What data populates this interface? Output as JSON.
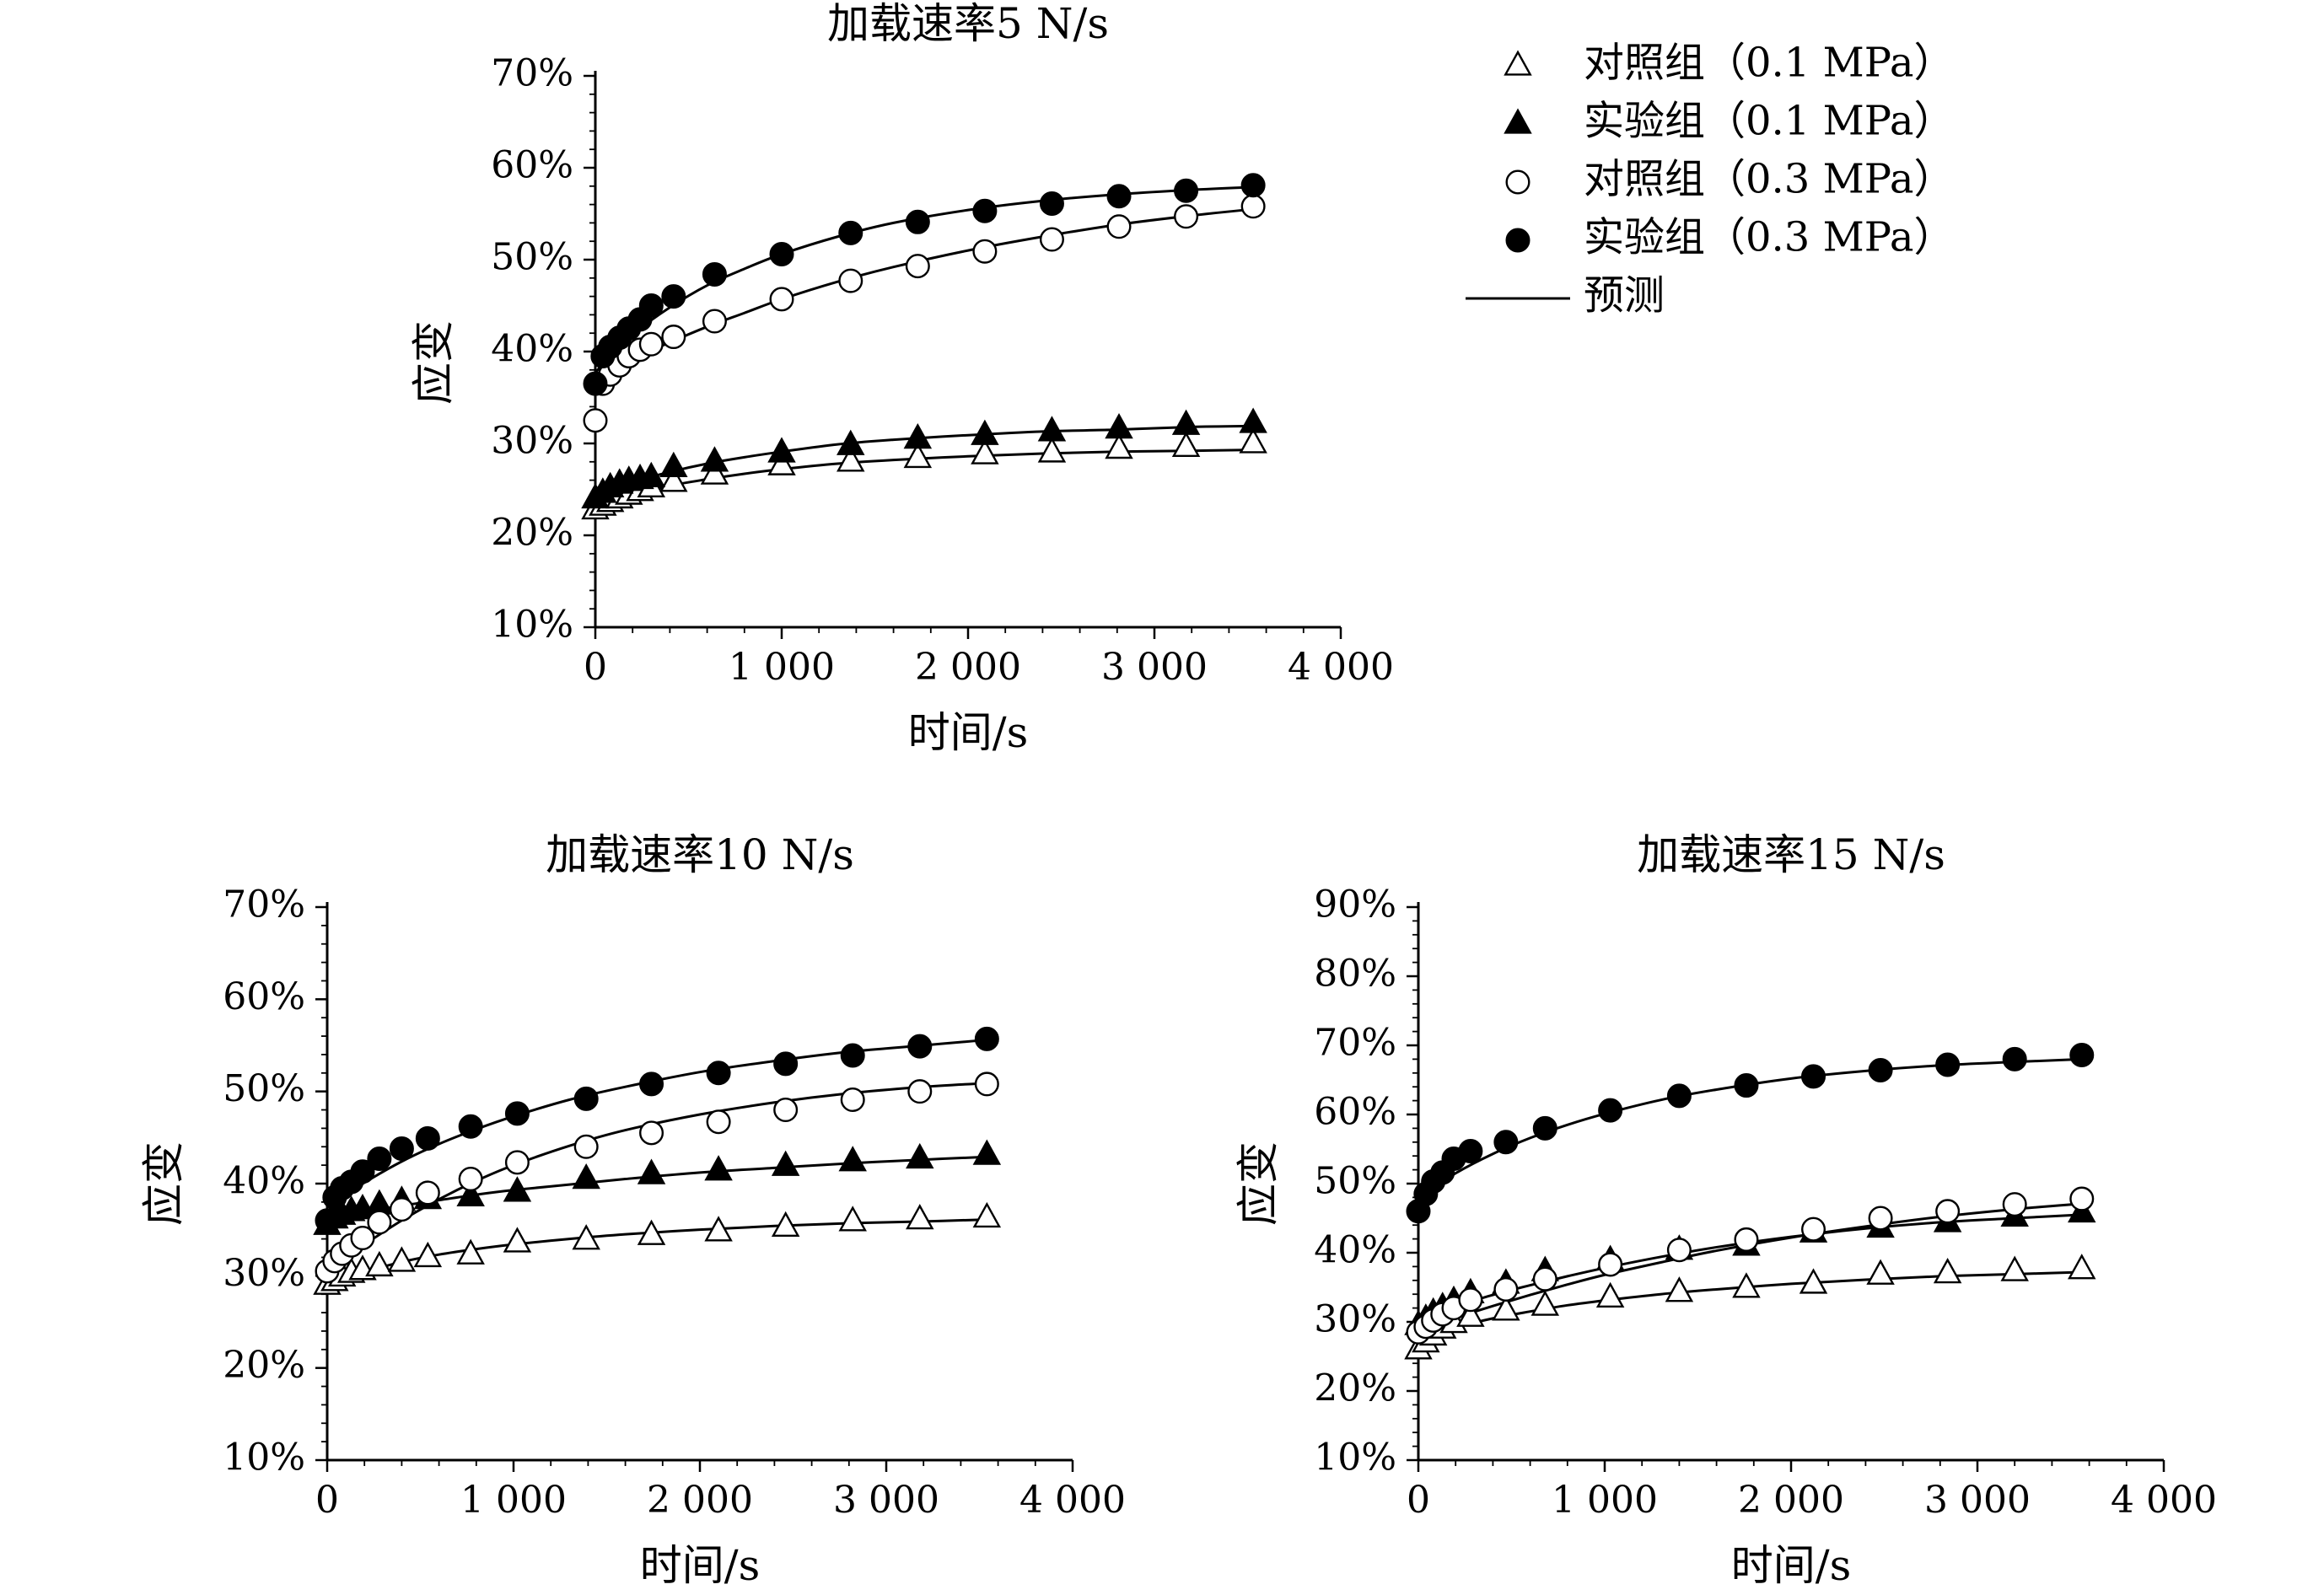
{
  "legend": {
    "items": [
      {
        "label": "对照组（0.1 MPa）",
        "marker": "triangle-open"
      },
      {
        "label": "实验组（0.1 MPa）",
        "marker": "triangle-filled"
      },
      {
        "label": "对照组（0.3 MPa）",
        "marker": "circle-open"
      },
      {
        "label": "实验组（0.3 MPa）",
        "marker": "circle-filled"
      },
      {
        "label": "预测",
        "marker": "line"
      }
    ]
  },
  "chart_data": [
    {
      "type": "scatter",
      "title": "加载速率5 N/s",
      "xlabel": "时间/s",
      "ylabel": "应变",
      "xlim": [
        0,
        4000
      ],
      "ylim": [
        10,
        70
      ],
      "xticks": [
        0,
        1000,
        2000,
        3000,
        4000
      ],
      "xtick_labels": [
        "0",
        "1 000",
        "2 000",
        "3 000",
        "4 000"
      ],
      "yticks": [
        10,
        20,
        30,
        40,
        50,
        60,
        70
      ],
      "ytick_labels": [
        "10%",
        "20%",
        "30%",
        "40%",
        "50%",
        "60%",
        "70%"
      ],
      "series": [
        {
          "name": "对照组（0.1 MPa）",
          "marker": "triangle-open",
          "x": [
            0,
            40,
            80,
            130,
            180,
            240,
            300,
            420,
            640,
            1000,
            1370,
            1730,
            2090,
            2450,
            2810,
            3170,
            3530
          ],
          "y": [
            22.8,
            23.2,
            23.6,
            24.0,
            24.4,
            24.8,
            25.2,
            25.8,
            26.6,
            27.6,
            28.0,
            28.4,
            28.8,
            29.0,
            29.4,
            29.6,
            30.0
          ]
        },
        {
          "name": "实验组（0.1 MPa）",
          "marker": "triangle-filled",
          "x": [
            0,
            40,
            80,
            130,
            180,
            240,
            300,
            420,
            640,
            1000,
            1370,
            1730,
            2090,
            2450,
            2810,
            3170,
            3530
          ],
          "y": [
            24.0,
            24.6,
            25.2,
            25.6,
            25.9,
            26.1,
            26.3,
            27.4,
            28.0,
            29.0,
            29.8,
            30.5,
            30.9,
            31.3,
            31.6,
            32.0,
            32.2
          ]
        },
        {
          "name": "对照组（0.3 MPa）",
          "marker": "circle-open",
          "x": [
            0,
            40,
            80,
            130,
            180,
            240,
            300,
            420,
            640,
            1000,
            1370,
            1730,
            2090,
            2450,
            2810,
            3170,
            3530
          ],
          "y": [
            32.5,
            36.5,
            37.5,
            38.5,
            39.5,
            40.2,
            40.8,
            41.6,
            43.3,
            45.7,
            47.7,
            49.3,
            50.9,
            52.2,
            53.6,
            54.7,
            55.8
          ]
        },
        {
          "name": "实验组（0.3 MPa）",
          "marker": "circle-filled",
          "x": [
            0,
            40,
            80,
            130,
            180,
            240,
            300,
            420,
            640,
            1000,
            1370,
            1730,
            2090,
            2450,
            2810,
            3170,
            3530
          ],
          "y": [
            36.5,
            39.5,
            40.5,
            41.5,
            42.5,
            43.5,
            45.0,
            46.0,
            48.4,
            50.6,
            52.9,
            54.1,
            55.3,
            56.1,
            56.9,
            57.5,
            58.1
          ]
        }
      ],
      "fits": [
        {
          "x": [
            0,
            100,
            200,
            400,
            600,
            800,
            1000,
            1300,
            1600,
            2000,
            2400,
            2800,
            3200,
            3530
          ],
          "y": [
            23.0,
            23.8,
            24.4,
            25.4,
            26.1,
            26.7,
            27.2,
            27.8,
            28.2,
            28.6,
            28.9,
            29.1,
            29.2,
            29.3
          ]
        },
        {
          "x": [
            0,
            100,
            200,
            400,
            600,
            800,
            1000,
            1300,
            1600,
            2000,
            2400,
            2800,
            3200,
            3530
          ],
          "y": [
            24.4,
            25.1,
            25.8,
            26.9,
            27.8,
            28.5,
            29.1,
            29.9,
            30.4,
            30.9,
            31.3,
            31.5,
            31.8,
            31.9
          ]
        },
        {
          "x": [
            0,
            100,
            200,
            400,
            600,
            800,
            1000,
            1300,
            1600,
            2000,
            2400,
            2800,
            3200,
            3530
          ],
          "y": [
            36.5,
            37.9,
            39.2,
            41.0,
            42.7,
            44.2,
            45.7,
            47.6,
            49.2,
            51.0,
            52.5,
            53.8,
            54.8,
            55.5
          ]
        },
        {
          "x": [
            0,
            100,
            200,
            400,
            600,
            800,
            1000,
            1300,
            1600,
            2000,
            2400,
            2800,
            3200,
            3530
          ],
          "y": [
            37.7,
            40.0,
            41.9,
            44.8,
            47.2,
            49.0,
            50.6,
            52.5,
            54.0,
            55.4,
            56.4,
            57.1,
            57.6,
            57.9
          ]
        }
      ]
    },
    {
      "type": "scatter",
      "title": "加载速率10 N/s",
      "xlabel": "时间/s",
      "ylabel": "应变",
      "xlim": [
        0,
        4000
      ],
      "ylim": [
        10,
        70
      ],
      "xticks": [
        0,
        1000,
        2000,
        3000,
        4000
      ],
      "xtick_labels": [
        "0",
        "1 000",
        "2 000",
        "3 000",
        "4 000"
      ],
      "yticks": [
        10,
        20,
        30,
        40,
        50,
        60,
        70
      ],
      "ytick_labels": [
        "10%",
        "20%",
        "30%",
        "40%",
        "50%",
        "60%",
        "70%"
      ],
      "series": [
        {
          "name": "对照组（0.1 MPa）",
          "marker": "triangle-open",
          "x": [
            0,
            40,
            80,
            130,
            190,
            280,
            400,
            540,
            770,
            1020,
            1390,
            1740,
            2100,
            2460,
            2820,
            3180,
            3540
          ],
          "y": [
            29.0,
            29.4,
            29.9,
            30.3,
            30.6,
            31.0,
            31.5,
            32.0,
            32.3,
            33.6,
            33.9,
            34.4,
            34.8,
            35.3,
            35.9,
            36.1,
            36.3
          ]
        },
        {
          "name": "实验组（0.1 MPa）",
          "marker": "triangle-filled",
          "x": [
            0,
            40,
            80,
            130,
            190,
            280,
            400,
            540,
            770,
            1020,
            1390,
            1740,
            2100,
            2460,
            2820,
            3180,
            3540
          ],
          "y": [
            35.5,
            36.2,
            36.6,
            37.0,
            37.2,
            37.7,
            38.1,
            38.3,
            38.6,
            39.1,
            40.5,
            41.0,
            41.4,
            41.9,
            42.4,
            42.7,
            43.1
          ]
        },
        {
          "name": "对照组（0.3 MPa）",
          "marker": "circle-open",
          "x": [
            0,
            40,
            80,
            130,
            190,
            280,
            400,
            540,
            770,
            1020,
            1390,
            1740,
            2100,
            2460,
            2820,
            3180,
            3540
          ],
          "y": [
            30.5,
            31.6,
            32.4,
            33.3,
            34.1,
            35.8,
            37.2,
            39.0,
            40.5,
            42.3,
            44.0,
            45.5,
            46.7,
            48.0,
            49.1,
            50.0,
            50.8
          ]
        },
        {
          "name": "实验组（0.3 MPa）",
          "marker": "circle-filled",
          "x": [
            0,
            40,
            80,
            130,
            190,
            280,
            400,
            540,
            770,
            1020,
            1390,
            1740,
            2100,
            2460,
            2820,
            3180,
            3540
          ],
          "y": [
            36.0,
            38.5,
            39.5,
            40.2,
            41.3,
            42.7,
            43.8,
            44.9,
            46.2,
            47.6,
            49.2,
            50.8,
            52.0,
            53.0,
            53.9,
            54.9,
            55.7
          ]
        }
      ],
      "fits": [
        {
          "x": [
            0,
            100,
            200,
            400,
            600,
            800,
            1000,
            1300,
            1600,
            2000,
            2400,
            2800,
            3200,
            3540
          ],
          "y": [
            28.9,
            29.7,
            30.4,
            31.5,
            32.3,
            32.9,
            33.4,
            34.0,
            34.5,
            35.0,
            35.4,
            35.7,
            35.9,
            36.1
          ]
        },
        {
          "x": [
            0,
            100,
            200,
            400,
            600,
            800,
            1000,
            1300,
            1600,
            2000,
            2400,
            2800,
            3200,
            3540
          ],
          "y": [
            36.0,
            36.5,
            36.9,
            37.6,
            38.2,
            38.8,
            39.3,
            39.9,
            40.5,
            41.2,
            41.7,
            42.2,
            42.6,
            42.9
          ]
        },
        {
          "x": [
            0,
            100,
            200,
            400,
            600,
            800,
            1000,
            1300,
            1600,
            2000,
            2400,
            2800,
            3200,
            3540
          ],
          "y": [
            30.6,
            32.0,
            33.4,
            36.0,
            38.3,
            40.3,
            42.0,
            44.1,
            45.8,
            47.5,
            48.8,
            49.8,
            50.5,
            50.9
          ]
        },
        {
          "x": [
            0,
            100,
            200,
            400,
            600,
            800,
            1000,
            1300,
            1600,
            2000,
            2400,
            2800,
            3200,
            3540
          ],
          "y": [
            37.0,
            38.7,
            40.1,
            42.4,
            44.3,
            45.9,
            47.3,
            49.1,
            50.5,
            52.1,
            53.3,
            54.3,
            55.0,
            55.6
          ]
        }
      ]
    },
    {
      "type": "scatter",
      "title": "加载速率15 N/s",
      "xlabel": "时间/s",
      "ylabel": "应变",
      "xlim": [
        0,
        4000
      ],
      "ylim": [
        10,
        90
      ],
      "xticks": [
        0,
        1000,
        2000,
        3000,
        4000
      ],
      "xtick_labels": [
        "0",
        "1 000",
        "2 000",
        "3 000",
        "4 000"
      ],
      "yticks": [
        10,
        20,
        30,
        40,
        50,
        60,
        70,
        80,
        90
      ],
      "ytick_labels": [
        "10%",
        "20%",
        "30%",
        "40%",
        "50%",
        "60%",
        "70%",
        "80%",
        "90%"
      ],
      "series": [
        {
          "name": "对照组（0.1 MPa）",
          "marker": "triangle-open",
          "x": [
            0,
            40,
            80,
            130,
            190,
            280,
            470,
            680,
            1030,
            1400,
            1760,
            2120,
            2480,
            2840,
            3200,
            3560
          ],
          "y": [
            26.0,
            27.0,
            28.0,
            29.0,
            29.8,
            30.7,
            31.6,
            32.3,
            33.5,
            34.3,
            34.9,
            35.5,
            36.8,
            37.0,
            37.3,
            37.6
          ]
        },
        {
          "name": "实验组（0.1 MPa）",
          "marker": "triangle-filled",
          "x": [
            0,
            40,
            80,
            130,
            190,
            280,
            470,
            680,
            1030,
            1400,
            1760,
            2120,
            2480,
            2840,
            3200,
            3560
          ],
          "y": [
            29.5,
            30.4,
            31.3,
            32.1,
            33.0,
            34.1,
            35.5,
            37.3,
            38.9,
            40.4,
            41.0,
            42.9,
            43.6,
            44.4,
            45.2,
            45.8
          ]
        },
        {
          "name": "对照组（0.3 MPa）",
          "marker": "circle-open",
          "x": [
            0,
            40,
            80,
            130,
            190,
            280,
            470,
            680,
            1030,
            1400,
            1760,
            2120,
            2480,
            2840,
            3200,
            3560
          ],
          "y": [
            28.5,
            29.3,
            30.2,
            31.1,
            32.0,
            33.2,
            34.7,
            36.2,
            38.3,
            40.4,
            41.9,
            43.4,
            45.0,
            46.0,
            47.0,
            47.8
          ]
        },
        {
          "name": "实验组（0.3 MPa）",
          "marker": "circle-filled",
          "x": [
            0,
            40,
            80,
            130,
            190,
            280,
            470,
            680,
            1030,
            1400,
            1760,
            2120,
            2480,
            2840,
            3200,
            3560
          ],
          "y": [
            46.0,
            48.5,
            50.3,
            51.6,
            53.6,
            54.7,
            56.0,
            58.0,
            60.6,
            62.7,
            64.2,
            65.5,
            66.4,
            67.2,
            68.0,
            68.6
          ]
        }
      ],
      "fits": [
        {
          "x": [
            0,
            100,
            200,
            400,
            600,
            800,
            1000,
            1300,
            1600,
            2000,
            2400,
            2800,
            3200,
            3560
          ],
          "y": [
            27.5,
            28.4,
            29.2,
            30.5,
            31.5,
            32.4,
            33.1,
            34.0,
            34.7,
            35.5,
            36.1,
            36.6,
            36.9,
            37.2
          ]
        },
        {
          "x": [
            0,
            100,
            200,
            400,
            600,
            800,
            1000,
            1300,
            1600,
            2000,
            2400,
            2800,
            3200,
            3560
          ],
          "y": [
            30.8,
            31.5,
            32.3,
            33.9,
            35.3,
            36.6,
            37.8,
            39.4,
            40.8,
            42.3,
            43.5,
            44.4,
            45.0,
            45.5
          ]
        },
        {
          "x": [
            0,
            100,
            200,
            400,
            600,
            800,
            1000,
            1300,
            1600,
            2000,
            2400,
            2800,
            3200,
            3560
          ],
          "y": [
            28.8,
            29.7,
            30.6,
            32.3,
            33.9,
            35.4,
            36.8,
            38.6,
            40.3,
            42.2,
            43.8,
            45.2,
            46.3,
            47.1
          ]
        },
        {
          "x": [
            0,
            100,
            200,
            400,
            600,
            800,
            1000,
            1300,
            1600,
            2000,
            2400,
            2800,
            3200,
            3560
          ],
          "y": [
            47.5,
            49.6,
            51.5,
            54.3,
            56.6,
            58.5,
            60.1,
            62.1,
            63.6,
            65.2,
            66.3,
            67.1,
            67.6,
            68.0
          ]
        }
      ]
    }
  ]
}
